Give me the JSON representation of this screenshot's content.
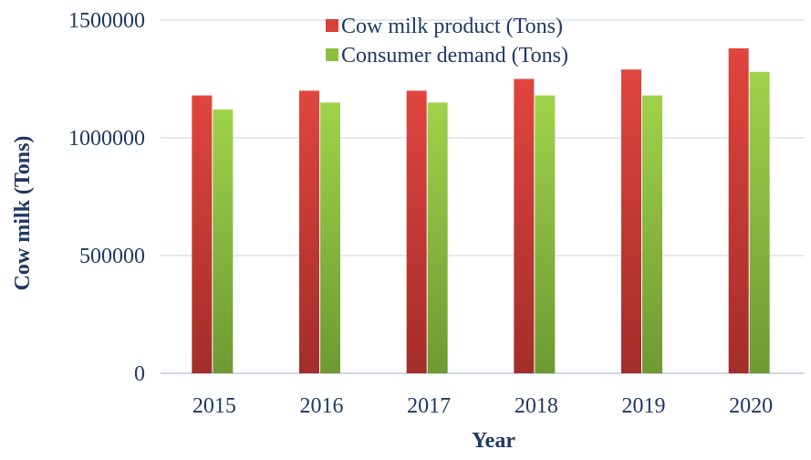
{
  "chart_data": {
    "type": "bar",
    "title": "",
    "xlabel": "Year",
    "ylabel": "Cow milk  (Tons)",
    "categories": [
      "2015",
      "2016",
      "2017",
      "2018",
      "2019",
      "2020"
    ],
    "series": [
      {
        "name": "Cow milk product (Tons)",
        "values": [
          1180000,
          1200000,
          1200000,
          1250000,
          1290000,
          1380000
        ],
        "color": "#d9403a"
      },
      {
        "name": "Consumer demand (Tons)",
        "values": [
          1120000,
          1150000,
          1150000,
          1180000,
          1180000,
          1280000
        ],
        "color": "#8cbf3f"
      }
    ],
    "ylim": [
      0,
      1500000
    ],
    "yticks": [
      "0",
      "500000",
      "1000000",
      "1500000"
    ],
    "grid": true,
    "legend_position": "top-right",
    "text_color": "#1f3864",
    "grid_color": "#c9d3e6"
  }
}
